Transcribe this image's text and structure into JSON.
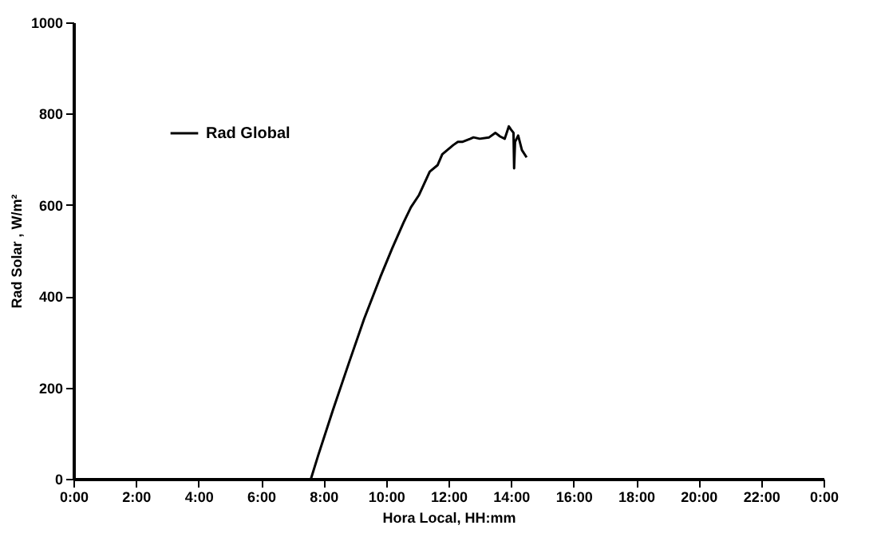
{
  "chart_data": {
    "type": "line",
    "xlabel": "Hora Local, HH:mm",
    "ylabel": "Rad Solar , W/m²",
    "x": [
      7.6,
      7.83,
      8.3,
      8.82,
      9.3,
      9.82,
      10.2,
      10.56,
      10.8,
      11.06,
      11.4,
      11.65,
      11.8,
      12.15,
      12.3,
      12.44,
      12.7,
      12.8,
      13.0,
      13.3,
      13.5,
      13.65,
      13.8,
      13.93,
      14.0,
      14.08,
      14.1,
      14.13,
      14.23,
      14.35,
      14.5
    ],
    "series": [
      {
        "name": "Rad Global",
        "color": "#000000",
        "values": [
          0,
          51,
          150,
          255,
          350,
          442,
          505,
          561,
          595,
          622,
          673,
          687,
          711,
          731,
          738,
          738,
          745,
          748,
          745,
          748,
          758,
          750,
          745,
          772,
          765,
          758,
          680,
          738,
          752,
          720,
          704
        ]
      }
    ],
    "xlim": [
      0,
      24
    ],
    "xticks": [
      {
        "value": 0,
        "label": "0:00"
      },
      {
        "value": 2,
        "label": "2:00"
      },
      {
        "value": 4,
        "label": "4:00"
      },
      {
        "value": 6,
        "label": "6:00"
      },
      {
        "value": 8,
        "label": "8:00"
      },
      {
        "value": 10,
        "label": "10:00"
      },
      {
        "value": 12,
        "label": "12:00"
      },
      {
        "value": 14,
        "label": "14:00"
      },
      {
        "value": 16,
        "label": "16:00"
      },
      {
        "value": 18,
        "label": "18:00"
      },
      {
        "value": 20,
        "label": "20:00"
      },
      {
        "value": 22,
        "label": "22:00"
      },
      {
        "value": 24,
        "label": "0:00"
      }
    ],
    "ylim": [
      0,
      1000
    ],
    "yticks": [
      0,
      200,
      400,
      600,
      800,
      1000
    ],
    "grid": false,
    "legend": "top left",
    "marker": "none",
    "line_style": "solid"
  }
}
